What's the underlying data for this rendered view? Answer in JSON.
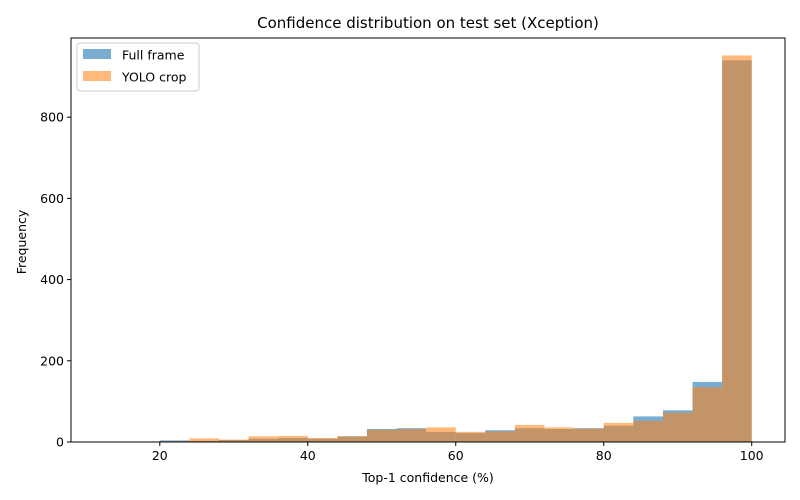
{
  "chart_data": {
    "type": "bar",
    "subtype": "overlaid-histogram",
    "title": "Confidence distribution on test set (Xception)",
    "xlabel": "Top-1 confidence (%)",
    "ylabel": "Frequency",
    "xlim": [
      8,
      104.5
    ],
    "ylim": [
      0,
      995
    ],
    "xticks": [
      20,
      40,
      60,
      80,
      100
    ],
    "yticks": [
      0,
      200,
      400,
      600,
      800
    ],
    "grid": false,
    "legend_position": "top-left",
    "series": [
      {
        "name": "Full frame",
        "color": "#1f77b4",
        "alpha": 0.6,
        "bins": [
          {
            "x0": 16.0,
            "x1": 20.0,
            "value": 1
          },
          {
            "x0": 20.0,
            "x1": 24.0,
            "value": 4
          },
          {
            "x0": 24.0,
            "x1": 28.0,
            "value": 3
          },
          {
            "x0": 28.0,
            "x1": 32.0,
            "value": 5
          },
          {
            "x0": 32.0,
            "x1": 36.0,
            "value": 8
          },
          {
            "x0": 36.0,
            "x1": 40.0,
            "value": 10
          },
          {
            "x0": 40.0,
            "x1": 44.0,
            "value": 8
          },
          {
            "x0": 44.0,
            "x1": 48.0,
            "value": 14
          },
          {
            "x0": 48.0,
            "x1": 52.0,
            "value": 32
          },
          {
            "x0": 52.0,
            "x1": 56.0,
            "value": 34
          },
          {
            "x0": 56.0,
            "x1": 60.0,
            "value": 25
          },
          {
            "x0": 60.0,
            "x1": 64.0,
            "value": 22
          },
          {
            "x0": 64.0,
            "x1": 68.0,
            "value": 29
          },
          {
            "x0": 68.0,
            "x1": 72.0,
            "value": 34
          },
          {
            "x0": 72.0,
            "x1": 76.0,
            "value": 32
          },
          {
            "x0": 76.0,
            "x1": 80.0,
            "value": 34
          },
          {
            "x0": 80.0,
            "x1": 84.0,
            "value": 40
          },
          {
            "x0": 84.0,
            "x1": 88.0,
            "value": 63
          },
          {
            "x0": 88.0,
            "x1": 92.0,
            "value": 78
          },
          {
            "x0": 92.0,
            "x1": 96.0,
            "value": 148
          },
          {
            "x0": 96.0,
            "x1": 100.0,
            "value": 940
          }
        ]
      },
      {
        "name": "YOLO crop",
        "color": "#ff7f0e",
        "alpha": 0.55,
        "bins": [
          {
            "x0": 12.0,
            "x1": 16.0,
            "value": 1
          },
          {
            "x0": 16.0,
            "x1": 20.0,
            "value": 1
          },
          {
            "x0": 20.0,
            "x1": 24.0,
            "value": 2
          },
          {
            "x0": 24.0,
            "x1": 28.0,
            "value": 9
          },
          {
            "x0": 28.0,
            "x1": 32.0,
            "value": 6
          },
          {
            "x0": 32.0,
            "x1": 36.0,
            "value": 14
          },
          {
            "x0": 36.0,
            "x1": 40.0,
            "value": 15
          },
          {
            "x0": 40.0,
            "x1": 44.0,
            "value": 10
          },
          {
            "x0": 44.0,
            "x1": 48.0,
            "value": 14
          },
          {
            "x0": 48.0,
            "x1": 52.0,
            "value": 30
          },
          {
            "x0": 52.0,
            "x1": 56.0,
            "value": 32
          },
          {
            "x0": 56.0,
            "x1": 60.0,
            "value": 36
          },
          {
            "x0": 60.0,
            "x1": 64.0,
            "value": 25
          },
          {
            "x0": 64.0,
            "x1": 68.0,
            "value": 26
          },
          {
            "x0": 68.0,
            "x1": 72.0,
            "value": 42
          },
          {
            "x0": 72.0,
            "x1": 76.0,
            "value": 36
          },
          {
            "x0": 76.0,
            "x1": 80.0,
            "value": 33
          },
          {
            "x0": 80.0,
            "x1": 84.0,
            "value": 47
          },
          {
            "x0": 84.0,
            "x1": 88.0,
            "value": 52
          },
          {
            "x0": 88.0,
            "x1": 92.0,
            "value": 72
          },
          {
            "x0": 92.0,
            "x1": 96.0,
            "value": 135
          },
          {
            "x0": 96.0,
            "x1": 100.0,
            "value": 952
          }
        ]
      }
    ]
  }
}
